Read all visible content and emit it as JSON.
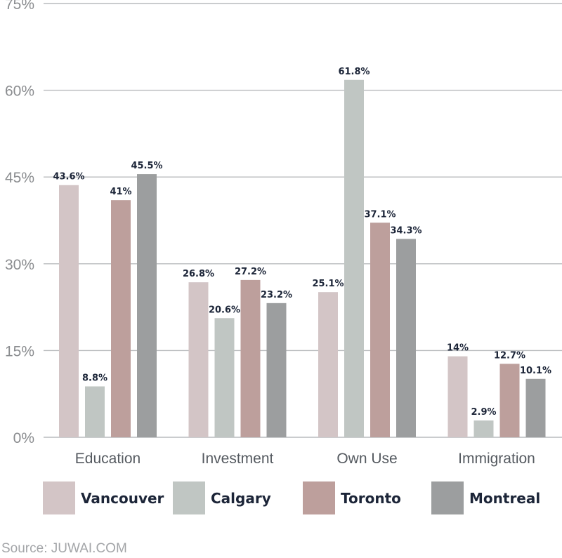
{
  "chart_data": {
    "type": "bar",
    "categories": [
      "Education",
      "Investment",
      "Own Use",
      "Immigration"
    ],
    "series": [
      {
        "name": "Vancouver",
        "values": [
          43.6,
          26.8,
          25.1,
          14
        ],
        "labels": [
          "43.6%",
          "26.8%",
          "25.1%",
          "14%"
        ],
        "color": "#d3c5c6"
      },
      {
        "name": "Calgary",
        "values": [
          8.8,
          20.6,
          61.8,
          2.9
        ],
        "labels": [
          "8.8%",
          "20.6%",
          "61.8%",
          "2.9%"
        ],
        "color": "#c0c6c3"
      },
      {
        "name": "Toronto",
        "values": [
          41,
          27.2,
          37.1,
          12.7
        ],
        "labels": [
          "41%",
          "27.2%",
          "37.1%",
          "12.7%"
        ],
        "color": "#bd9f9c"
      },
      {
        "name": "Montreal",
        "values": [
          45.5,
          23.2,
          34.3,
          10.1
        ],
        "labels": [
          "45.5%",
          "23.2%",
          "34.3%",
          "10.1%"
        ],
        "color": "#9c9e9f"
      }
    ],
    "yticks": [
      0,
      15,
      30,
      45,
      60,
      75
    ],
    "ytick_labels": [
      "0%",
      "15%",
      "30%",
      "45%",
      "60%",
      "75%"
    ],
    "ylim": [
      0,
      75
    ],
    "grid": true,
    "legend_position": "bottom"
  },
  "source": "Source: JUWAI.COM"
}
